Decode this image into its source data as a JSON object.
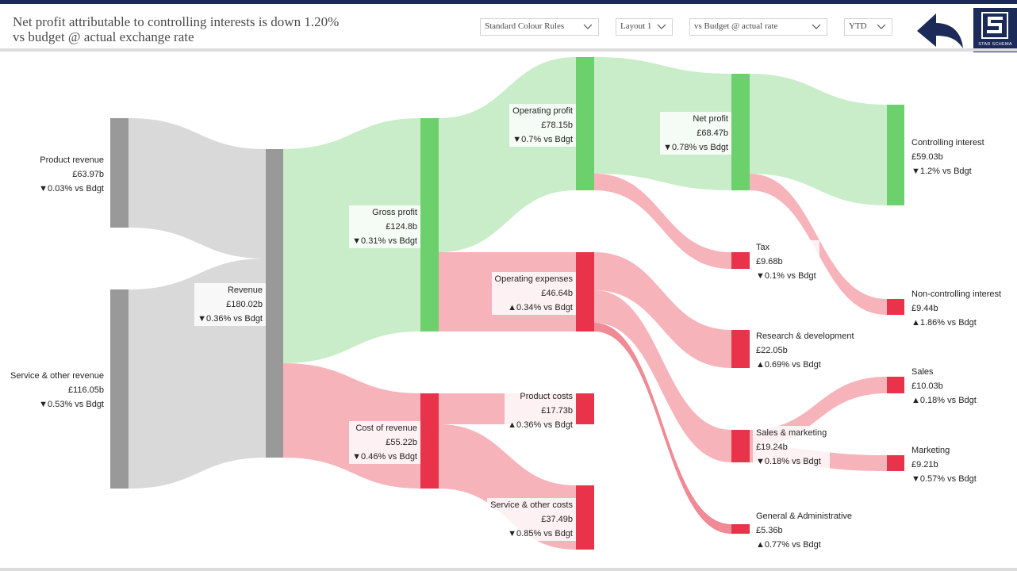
{
  "header": {
    "title": "Net profit attributable to controlling interests is down 1.20% vs budget @ actual exchange rate",
    "slicers": [
      {
        "label": "Standard Colour Rules"
      },
      {
        "label": "Layout 1"
      },
      {
        "label": "vs Budget @ actual rate"
      },
      {
        "label": "YTD"
      }
    ],
    "back_icon": "back-arrow-icon",
    "logo_text": "STAR SCHEMA"
  },
  "colors": {
    "header_bar": "#1b2a59",
    "neutral_node": "#999999",
    "neutral_flow": "#d9d9d9",
    "positive_node": "#6cd06c",
    "positive_flow": "#c8edc8",
    "negative_node": "#e8334a",
    "negative_flow": "#f7b3ba"
  },
  "nodes": {
    "product_revenue": {
      "name": "Product revenue",
      "value": "£63.97b",
      "delta": "▼0.03% vs Bdgt"
    },
    "service_revenue": {
      "name": "Service & other revenue",
      "value": "£116.05b",
      "delta": "▼0.53% vs Bdgt"
    },
    "revenue": {
      "name": "Revenue",
      "value": "£180.02b",
      "delta": "▼0.36% vs Bdgt"
    },
    "gross_profit": {
      "name": "Gross profit",
      "value": "£124.8b",
      "delta": "▼0.31% vs Bdgt"
    },
    "cost_of_revenue": {
      "name": "Cost of revenue",
      "value": "£55.22b",
      "delta": "▼0.46% vs Bdgt"
    },
    "operating_profit": {
      "name": "Operating profit",
      "value": "£78.15b",
      "delta": "▼0.7% vs Bdgt"
    },
    "operating_expenses": {
      "name": "Operating expenses",
      "value": "£46.64b",
      "delta": "▲0.34% vs Bdgt"
    },
    "product_costs": {
      "name": "Product costs",
      "value": "£17.73b",
      "delta": "▲0.36% vs Bdgt"
    },
    "service_costs": {
      "name": "Service & other costs",
      "value": "£37.49b",
      "delta": "▼0.85% vs Bdgt"
    },
    "net_profit": {
      "name": "Net profit",
      "value": "£68.47b",
      "delta": "▼0.78% vs Bdgt"
    },
    "tax": {
      "name": "Tax",
      "value": "£9.68b",
      "delta": "▼0.1% vs Bdgt"
    },
    "rnd": {
      "name": "Research & development",
      "value": "£22.05b",
      "delta": "▲0.69% vs Bdgt"
    },
    "sales_marketing": {
      "name": "Sales & marketing",
      "value": "£19.24b",
      "delta": "▼0.18% vs Bdgt"
    },
    "gna": {
      "name": "General & Administrative",
      "value": "£5.36b",
      "delta": "▲0.77% vs Bdgt"
    },
    "controlling": {
      "name": "Controlling interest",
      "value": "£59.03b",
      "delta": "▼1.2% vs Bdgt"
    },
    "noncontrolling": {
      "name": "Non-controlling interest",
      "value": "£9.44b",
      "delta": "▲1.86% vs Bdgt"
    },
    "sales": {
      "name": "Sales",
      "value": "£10.03b",
      "delta": "▲0.18% vs Bdgt"
    },
    "marketing": {
      "name": "Marketing",
      "value": "£9.21b",
      "delta": "▼0.57% vs Bdgt"
    }
  }
}
